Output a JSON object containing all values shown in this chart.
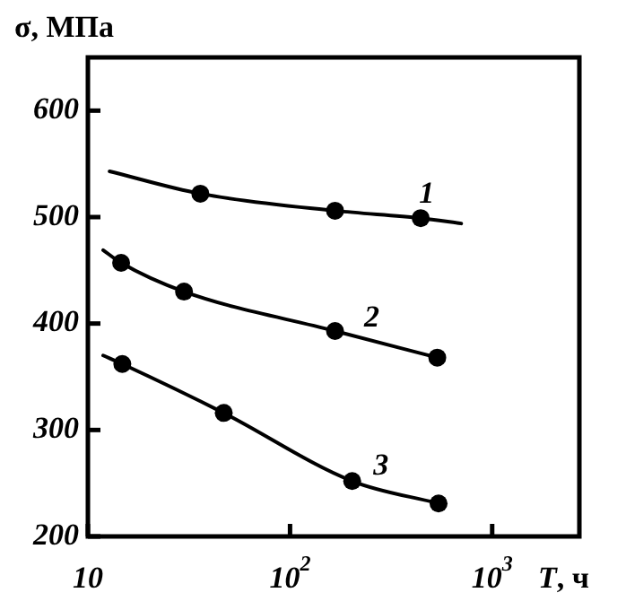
{
  "chart_data": {
    "type": "line",
    "ylabel": "σ, МПа",
    "xlabel": "T, ч",
    "log": "x",
    "xlim": [
      10,
      2700
    ],
    "xticks": [
      10,
      {
        "value": 100,
        "label": "10$^{2}$"
      },
      {
        "value": 1000,
        "label": "10$^{3}$"
      }
    ],
    "ylim": [
      200,
      650
    ],
    "yticks": [
      200,
      300,
      400,
      500,
      600
    ],
    "grid": false,
    "legend": false,
    "series": [
      {
        "name": "1",
        "marker": "none",
        "color": "#000000",
        "x": [
          12.8,
          36,
          167,
          443,
          703
        ],
        "values": [
          543,
          522,
          506,
          499,
          494
        ]
      },
      {
        "name": "2",
        "marker": "none",
        "color": "#000000",
        "x": [
          11.9,
          14.6,
          29.9,
          167,
          535
        ],
        "values": [
          469,
          457,
          430,
          393,
          368
        ]
      },
      {
        "name": "3",
        "marker": "none",
        "color": "#000000",
        "x": [
          11.9,
          14.8,
          47,
          203,
          543
        ],
        "values": [
          370,
          362,
          316,
          252,
          231
        ]
      },
      {
        "type": "scatter",
        "marker": "circle",
        "color": "#000000",
        "x": [
          36,
          167,
          443
        ],
        "values": [
          522,
          506,
          499
        ]
      },
      {
        "type": "scatter",
        "marker": "circle",
        "color": "#000000",
        "x": [
          14.6,
          29.9,
          167,
          535
        ],
        "values": [
          457,
          430,
          393,
          368
        ]
      },
      {
        "type": "scatter",
        "marker": "circle",
        "color": "#000000",
        "x": [
          14.8,
          47,
          203,
          543
        ],
        "values": [
          362,
          316,
          252,
          231
        ]
      }
    ]
  }
}
